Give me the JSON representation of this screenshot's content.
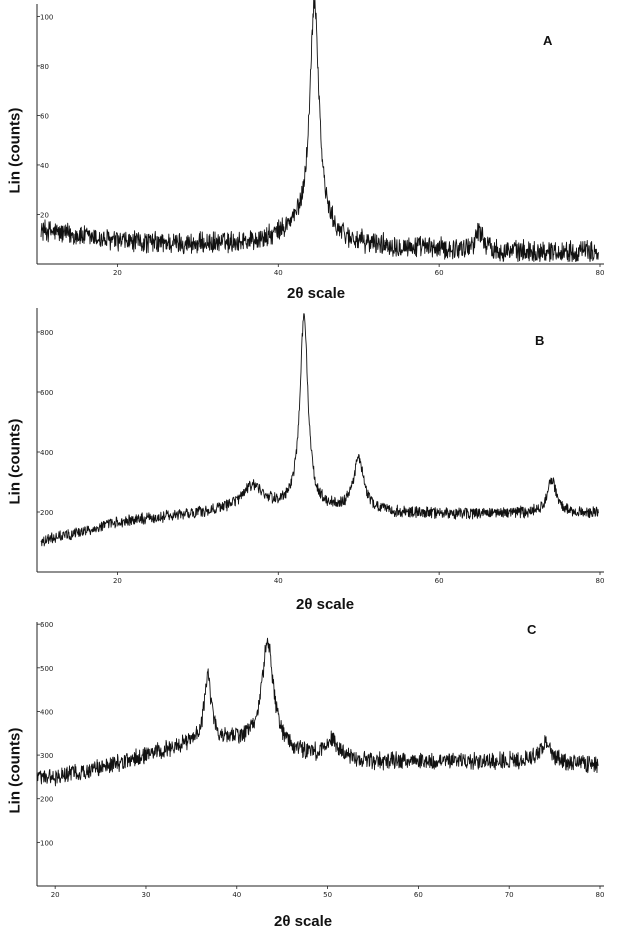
{
  "chart_data": [
    {
      "type": "line",
      "panel_label": "A",
      "xlabel": "2θ scale",
      "ylabel": "Lin (counts)",
      "xlim": [
        10,
        80
      ],
      "ylim": [
        0,
        105
      ],
      "xticks": [
        20,
        40,
        60,
        80
      ],
      "yticks": [
        20,
        40,
        60,
        80,
        100
      ],
      "baseline": [
        [
          10,
          14
        ],
        [
          20,
          9
        ],
        [
          30,
          8
        ],
        [
          38,
          9
        ],
        [
          42,
          13
        ],
        [
          50,
          8
        ],
        [
          60,
          6
        ],
        [
          70,
          5
        ],
        [
          80,
          5
        ]
      ],
      "noise": 5,
      "peaks": [
        {
          "x": 44.5,
          "height": 95,
          "width": 0.7
        },
        {
          "x": 65.0,
          "height": 8,
          "width": 0.6
        }
      ],
      "grid": false,
      "legend": "none"
    },
    {
      "type": "line",
      "panel_label": "B",
      "xlabel": "2θ scale",
      "ylabel": "Lin (counts)",
      "xlim": [
        10,
        80
      ],
      "ylim": [
        0,
        880
      ],
      "xticks": [
        20,
        40,
        60,
        80
      ],
      "yticks": [
        200,
        400,
        600,
        800
      ],
      "baseline": [
        [
          10,
          100
        ],
        [
          15,
          130
        ],
        [
          20,
          165
        ],
        [
          30,
          195
        ],
        [
          34,
          210
        ],
        [
          40,
          215
        ],
        [
          45,
          205
        ],
        [
          55,
          195
        ],
        [
          65,
          195
        ],
        [
          80,
          195
        ]
      ],
      "noise": 22,
      "peaks": [
        {
          "x": 36.8,
          "height": 70,
          "width": 1.5
        },
        {
          "x": 43.2,
          "height": 640,
          "width": 0.6
        },
        {
          "x": 50.0,
          "height": 170,
          "width": 0.8
        },
        {
          "x": 74.0,
          "height": 110,
          "width": 0.7
        }
      ],
      "grid": false,
      "legend": "none"
    },
    {
      "type": "line",
      "panel_label": "C",
      "xlabel": "2θ scale",
      "ylabel": "Lin (counts)",
      "xlim": [
        18,
        80
      ],
      "ylim": [
        0,
        605
      ],
      "xticks": [
        20,
        30,
        40,
        50,
        60,
        70,
        80
      ],
      "yticks": [
        100,
        200,
        300,
        400,
        500,
        600
      ],
      "baseline": [
        [
          20,
          250
        ],
        [
          25,
          270
        ],
        [
          30,
          300
        ],
        [
          34,
          320
        ],
        [
          40,
          330
        ],
        [
          47,
          300
        ],
        [
          55,
          285
        ],
        [
          65,
          285
        ],
        [
          72,
          285
        ],
        [
          80,
          275
        ]
      ],
      "noise": 22,
      "peaks": [
        {
          "x": 36.8,
          "height": 150,
          "width": 0.5
        },
        {
          "x": 43.4,
          "height": 240,
          "width": 0.8
        },
        {
          "x": 50.5,
          "height": 40,
          "width": 0.8
        },
        {
          "x": 74.0,
          "height": 45,
          "width": 0.8
        }
      ],
      "grid": false,
      "legend": "none"
    }
  ]
}
